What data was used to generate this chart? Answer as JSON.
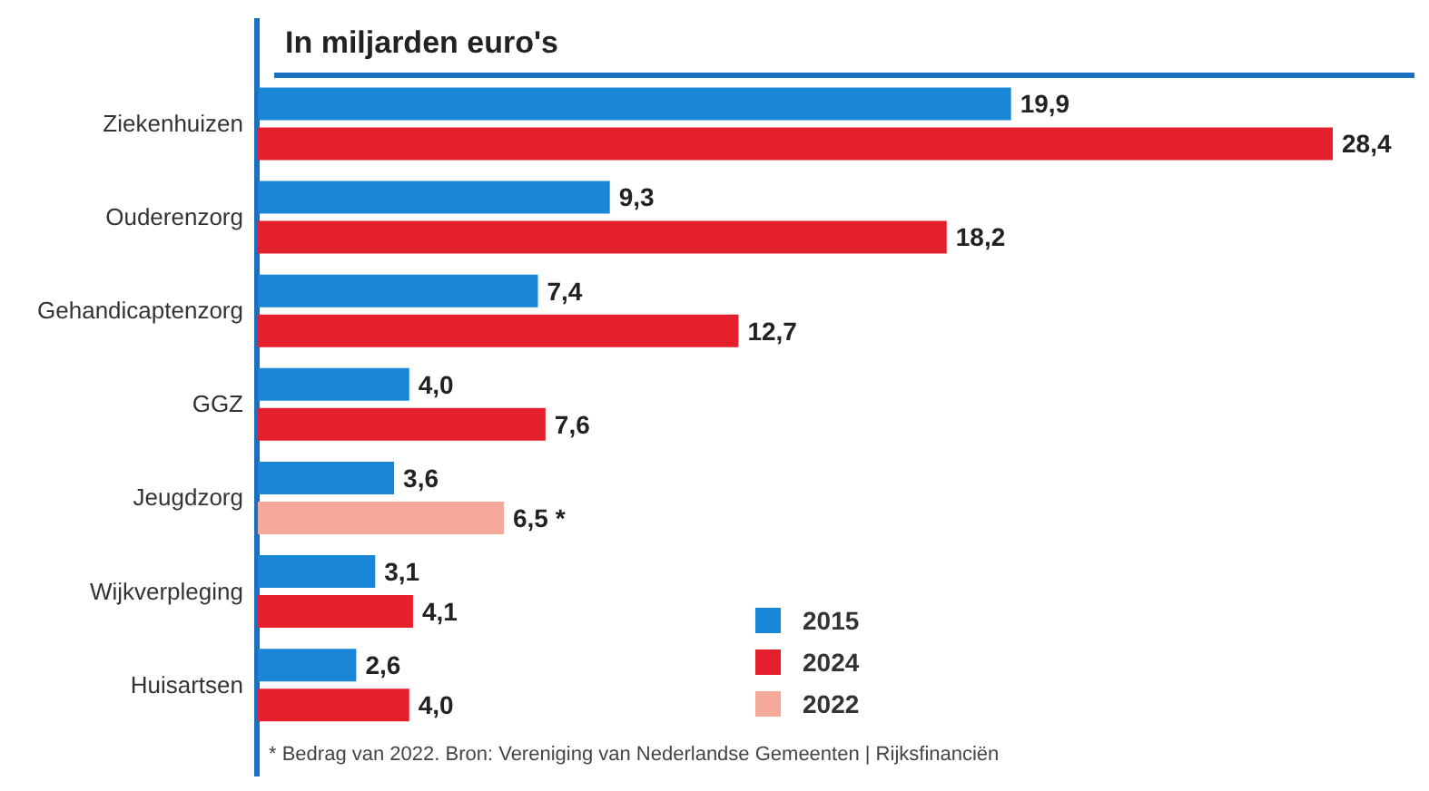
{
  "chart_data": {
    "type": "bar",
    "orientation": "horizontal",
    "title": "In miljarden euro's",
    "categories": [
      "Ziekenhuizen",
      "Ouderenzorg",
      "Gehandicaptenzorg",
      "GGZ",
      "Jeugdzorg",
      "Wijkverpleging",
      "Huisartsen"
    ],
    "series": [
      {
        "name": "2015",
        "color": "#1a87d6",
        "values": [
          19.9,
          9.3,
          7.4,
          4.0,
          3.6,
          3.1,
          2.6
        ],
        "value_labels": [
          "19,9",
          "9,3",
          "7,4",
          "4,0",
          "3,6",
          "3,1",
          "2,6"
        ]
      },
      {
        "name": "2024",
        "color": "#e3202b",
        "values": [
          28.4,
          18.2,
          12.7,
          7.6,
          null,
          4.1,
          4.0
        ],
        "value_labels": [
          "28,4",
          "18,2",
          "12,7",
          "7,6",
          null,
          "4,1",
          "4,0"
        ]
      },
      {
        "name": "2022",
        "color": "#f4a99a",
        "values": [
          null,
          null,
          null,
          null,
          6.5,
          null,
          null
        ],
        "value_labels": [
          null,
          null,
          null,
          null,
          "6,5 *",
          null,
          null
        ]
      }
    ],
    "legend": "bottom right",
    "annotations": [
      "* Bedrag van 2022. Bron: Vereniging van Nederlandse Gemeenten | Rijksfinanciën"
    ]
  }
}
